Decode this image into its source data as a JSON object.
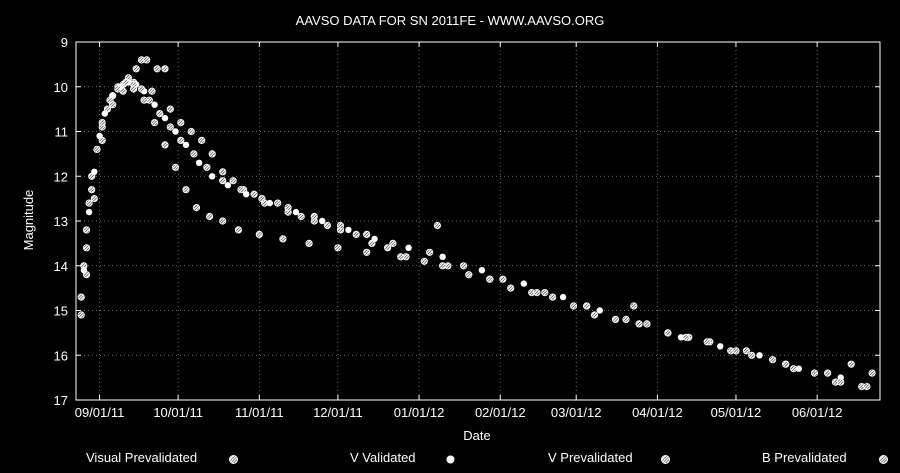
{
  "chart_data": {
    "type": "scatter",
    "title": "AAVSO DATA FOR SN 2011FE - WWW.AAVSO.ORG",
    "xlabel": "Date",
    "ylabel": "Magnitude",
    "y_inverted": true,
    "ylim": [
      17,
      9
    ],
    "xlim": [
      "2011-08-23",
      "2012-06-25"
    ],
    "x_ticks": [
      "09/01/11",
      "10/01/11",
      "11/01/11",
      "12/01/11",
      "01/01/12",
      "02/01/12",
      "03/01/12",
      "04/01/12",
      "05/01/12",
      "06/01/12"
    ],
    "y_ticks": [
      "9",
      "10",
      "11",
      "12",
      "13",
      "14",
      "15",
      "16",
      "17"
    ],
    "grid": true,
    "legend_position": "bottom",
    "series": [
      {
        "name": "Visual Prevalidated",
        "marker": "hatched-circle",
        "points": [
          [
            "2011-08-25",
            15.1
          ],
          [
            "2011-08-25",
            14.7
          ],
          [
            "2011-08-26",
            14.0
          ],
          [
            "2011-08-27",
            13.2
          ],
          [
            "2011-08-28",
            12.6
          ],
          [
            "2011-08-29",
            12.0
          ],
          [
            "2011-08-31",
            11.4
          ],
          [
            "2011-09-02",
            10.9
          ],
          [
            "2011-09-04",
            10.5
          ],
          [
            "2011-09-06",
            10.2
          ],
          [
            "2011-09-08",
            10.0
          ],
          [
            "2011-09-10",
            9.95
          ],
          [
            "2011-09-12",
            9.8
          ],
          [
            "2011-09-14",
            9.9
          ],
          [
            "2011-09-15",
            9.6
          ],
          [
            "2011-09-17",
            9.4
          ],
          [
            "2011-09-19",
            9.4
          ],
          [
            "2011-09-21",
            10.1
          ],
          [
            "2011-09-23",
            9.6
          ],
          [
            "2011-09-26",
            9.6
          ],
          [
            "2011-09-28",
            10.5
          ],
          [
            "2011-10-02",
            10.8
          ],
          [
            "2011-10-06",
            11.0
          ],
          [
            "2011-10-10",
            11.2
          ],
          [
            "2011-10-14",
            11.5
          ],
          [
            "2011-10-18",
            11.9
          ],
          [
            "2011-10-22",
            12.1
          ],
          [
            "2011-10-26",
            12.3
          ],
          [
            "2011-10-30",
            12.4
          ],
          [
            "2011-11-03",
            12.6
          ],
          [
            "2011-11-08",
            12.6
          ],
          [
            "2011-11-12",
            12.8
          ],
          [
            "2011-11-17",
            12.9
          ],
          [
            "2011-11-22",
            13.0
          ],
          [
            "2011-11-27",
            13.1
          ],
          [
            "2011-12-02",
            13.2
          ],
          [
            "2011-12-08",
            13.3
          ],
          [
            "2011-12-14",
            13.5
          ],
          [
            "2011-12-20",
            13.6
          ],
          [
            "2011-12-27",
            13.8
          ],
          [
            "2012-01-03",
            13.9
          ],
          [
            "2012-01-08",
            13.1
          ],
          [
            "2012-01-12",
            14.0
          ],
          [
            "2012-01-20",
            14.2
          ],
          [
            "2012-01-28",
            14.3
          ],
          [
            "2012-02-05",
            14.5
          ],
          [
            "2012-02-13",
            14.6
          ],
          [
            "2012-02-21",
            14.7
          ],
          [
            "2012-02-29",
            14.9
          ],
          [
            "2012-03-08",
            15.1
          ],
          [
            "2012-03-16",
            15.2
          ],
          [
            "2012-03-23",
            14.9
          ],
          [
            "2012-03-28",
            15.3
          ],
          [
            "2012-04-05",
            15.5
          ],
          [
            "2012-04-13",
            15.6
          ],
          [
            "2012-04-21",
            15.7
          ],
          [
            "2012-04-29",
            15.9
          ],
          [
            "2012-05-07",
            16.0
          ],
          [
            "2012-05-15",
            16.1
          ],
          [
            "2012-05-23",
            16.3
          ],
          [
            "2012-05-31",
            16.4
          ],
          [
            "2012-06-08",
            16.6
          ],
          [
            "2012-06-14",
            16.2
          ],
          [
            "2012-06-18",
            16.7
          ],
          [
            "2012-06-22",
            16.4
          ]
        ]
      },
      {
        "name": "V Validated",
        "marker": "filled-circle",
        "points": [
          [
            "2011-08-26",
            14.1
          ],
          [
            "2011-08-28",
            12.8
          ],
          [
            "2011-08-30",
            11.9
          ],
          [
            "2011-09-01",
            11.1
          ],
          [
            "2011-09-03",
            10.6
          ],
          [
            "2011-09-06",
            10.2
          ],
          [
            "2011-09-09",
            10.0
          ],
          [
            "2011-09-12",
            9.9
          ],
          [
            "2011-09-15",
            9.95
          ],
          [
            "2011-09-18",
            10.1
          ],
          [
            "2011-09-22",
            10.4
          ],
          [
            "2011-09-26",
            10.7
          ],
          [
            "2011-09-30",
            11.0
          ],
          [
            "2011-10-04",
            11.3
          ],
          [
            "2011-10-09",
            11.7
          ],
          [
            "2011-10-14",
            12.0
          ],
          [
            "2011-10-20",
            12.2
          ],
          [
            "2011-10-27",
            12.4
          ],
          [
            "2011-11-05",
            12.6
          ],
          [
            "2011-11-15",
            12.8
          ],
          [
            "2011-11-25",
            13.0
          ],
          [
            "2011-12-05",
            13.2
          ],
          [
            "2011-12-15",
            13.4
          ],
          [
            "2011-12-28",
            13.6
          ],
          [
            "2012-01-10",
            13.8
          ],
          [
            "2012-01-25",
            14.1
          ],
          [
            "2012-02-10",
            14.4
          ],
          [
            "2012-02-25",
            14.7
          ],
          [
            "2012-03-10",
            15.0
          ],
          [
            "2012-03-25",
            15.3
          ],
          [
            "2012-04-10",
            15.6
          ],
          [
            "2012-04-25",
            15.8
          ],
          [
            "2012-05-10",
            16.0
          ],
          [
            "2012-05-25",
            16.3
          ],
          [
            "2012-06-10",
            16.5
          ]
        ]
      },
      {
        "name": "V Prevalidated",
        "marker": "hatched-circle",
        "points": [
          [
            "2011-08-27",
            13.6
          ],
          [
            "2011-08-29",
            12.3
          ],
          [
            "2011-09-02",
            10.8
          ],
          [
            "2011-09-05",
            10.3
          ],
          [
            "2011-09-08",
            10.05
          ],
          [
            "2011-09-11",
            9.9
          ],
          [
            "2011-09-14",
            9.95
          ],
          [
            "2011-09-17",
            10.05
          ],
          [
            "2011-09-20",
            10.3
          ],
          [
            "2011-09-24",
            10.6
          ],
          [
            "2011-09-28",
            10.9
          ],
          [
            "2011-10-02",
            11.2
          ],
          [
            "2011-10-07",
            11.5
          ],
          [
            "2011-10-12",
            11.8
          ],
          [
            "2011-10-18",
            12.1
          ],
          [
            "2011-10-25",
            12.3
          ],
          [
            "2011-11-02",
            12.5
          ],
          [
            "2011-11-12",
            12.7
          ],
          [
            "2011-11-22",
            12.9
          ],
          [
            "2011-12-02",
            13.1
          ],
          [
            "2011-12-12",
            13.3
          ],
          [
            "2011-12-22",
            13.5
          ],
          [
            "2012-01-05",
            13.7
          ],
          [
            "2012-01-18",
            14.0
          ],
          [
            "2012-02-02",
            14.3
          ],
          [
            "2012-02-18",
            14.6
          ],
          [
            "2012-03-05",
            14.9
          ],
          [
            "2012-03-20",
            15.2
          ],
          [
            "2012-04-05",
            15.5
          ],
          [
            "2012-04-20",
            15.7
          ],
          [
            "2012-05-05",
            15.9
          ],
          [
            "2012-05-20",
            16.2
          ],
          [
            "2012-06-05",
            16.4
          ],
          [
            "2012-06-20",
            16.7
          ]
        ]
      },
      {
        "name": "B Prevalidated",
        "marker": "hatched-circle",
        "points": [
          [
            "2011-08-27",
            14.2
          ],
          [
            "2011-08-30",
            12.5
          ],
          [
            "2011-09-02",
            11.2
          ],
          [
            "2011-09-06",
            10.4
          ],
          [
            "2011-09-10",
            10.1
          ],
          [
            "2011-09-14",
            10.05
          ],
          [
            "2011-09-18",
            10.3
          ],
          [
            "2011-09-22",
            10.8
          ],
          [
            "2011-09-26",
            11.3
          ],
          [
            "2011-09-30",
            11.8
          ],
          [
            "2011-10-04",
            12.3
          ],
          [
            "2011-10-08",
            12.7
          ],
          [
            "2011-10-13",
            12.9
          ],
          [
            "2011-10-18",
            13.0
          ],
          [
            "2011-10-24",
            13.2
          ],
          [
            "2011-11-01",
            13.3
          ],
          [
            "2011-11-10",
            13.4
          ],
          [
            "2011-11-20",
            13.5
          ],
          [
            "2011-12-01",
            13.6
          ],
          [
            "2011-12-12",
            13.7
          ],
          [
            "2011-12-25",
            13.8
          ],
          [
            "2012-01-10",
            14.0
          ],
          [
            "2012-01-28",
            14.3
          ],
          [
            "2012-02-15",
            14.6
          ],
          [
            "2012-03-05",
            14.9
          ],
          [
            "2012-03-25",
            15.3
          ],
          [
            "2012-04-12",
            15.6
          ],
          [
            "2012-05-01",
            15.9
          ],
          [
            "2012-05-20",
            16.2
          ],
          [
            "2012-06-10",
            16.6
          ]
        ]
      }
    ]
  }
}
